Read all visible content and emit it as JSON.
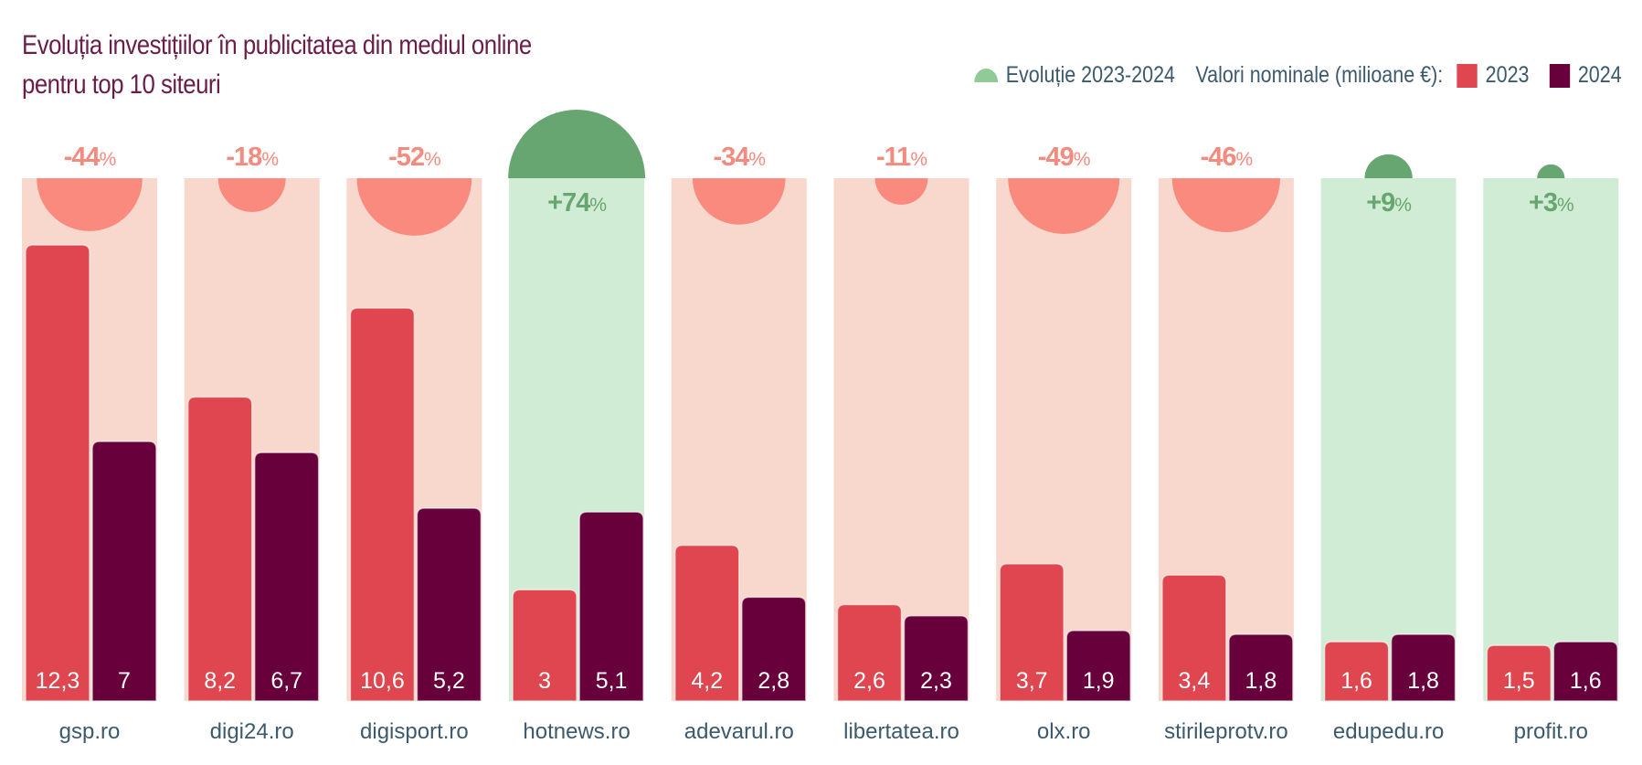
{
  "chart_data": {
    "type": "bar",
    "title": "Evoluția investițiilor în publicitatea din mediul online pentru top 10 siteuri",
    "title_lines": [
      "Evoluția investițiilor în publicitatea din mediul online",
      "pentru top 10 siteuri"
    ],
    "xlabel": "",
    "ylabel": "Valori nominale (milioane €)",
    "ylim": [
      0,
      12.3
    ],
    "grid": false,
    "legend_position": "top-right",
    "legend": {
      "evolution_label": "Evoluție 2023-2024",
      "values_label": "Valori nominale (milioane €):",
      "series_2023_label": "2023",
      "series_2024_label": "2024"
    },
    "categories": [
      "gsp.ro",
      "digi24.ro",
      "digisport.ro",
      "hotnews.ro",
      "adevarul.ro",
      "libertatea.ro",
      "olx.ro",
      "stirileprotv.ro",
      "edupedu.ro",
      "profit.ro"
    ],
    "series": [
      {
        "name": "2023",
        "color": "#e0464f",
        "values": [
          12.3,
          8.2,
          10.6,
          3,
          4.2,
          2.6,
          3.7,
          3.4,
          1.6,
          1.5
        ],
        "labels": [
          "12,3",
          "8,2",
          "10,6",
          "3",
          "4,2",
          "2,6",
          "3,7",
          "3,4",
          "1,6",
          "1,5"
        ]
      },
      {
        "name": "2024",
        "color": "#68003c",
        "values": [
          7,
          6.7,
          5.2,
          5.1,
          2.8,
          2.3,
          1.9,
          1.8,
          1.8,
          1.6
        ],
        "labels": [
          "7",
          "6,7",
          "5,2",
          "5,1",
          "2,8",
          "2,3",
          "1,9",
          "1,8",
          "1,8",
          "1,6"
        ]
      }
    ],
    "evolution": {
      "name": "Evoluție 2023-2024",
      "values": [
        -44,
        -18,
        -52,
        74,
        -34,
        -11,
        -49,
        -46,
        9,
        3
      ],
      "labels": [
        "-44",
        "-18",
        "-52",
        "+74",
        "-34",
        "-11",
        "-49",
        "-46",
        "+9",
        "+3"
      ],
      "unit": "%"
    }
  },
  "colors": {
    "title": "#6b1d4a",
    "axis_text": "#3c5a6e",
    "bar_2023": "#e0464f",
    "bar_2024": "#68003c",
    "negative_bg": "#f8d8cc",
    "negative_circle": "#fb8a7e",
    "negative_text": "#f58a7e",
    "positive_bg": "#d1ecd4",
    "positive_circle": "#67a571",
    "positive_text": "#67a571",
    "legend_semi": "#8fca97"
  }
}
